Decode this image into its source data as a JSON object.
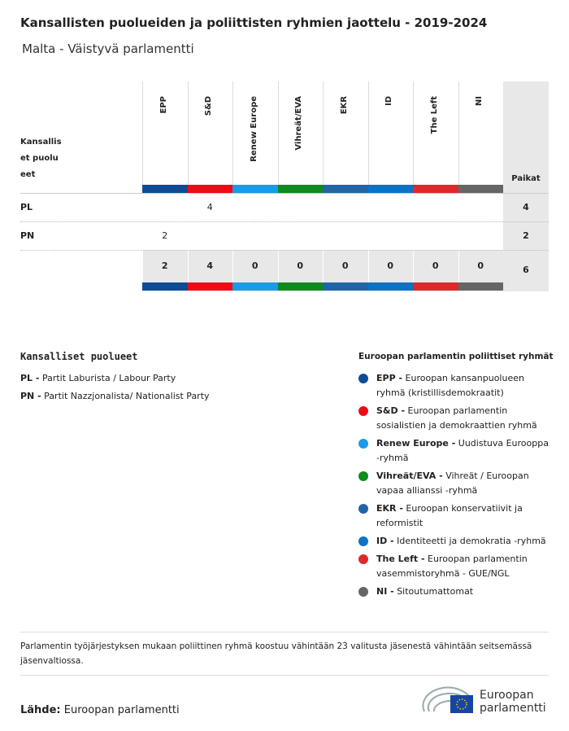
{
  "header": {
    "title": "Kansallisten puolueiden ja poliittisten ryhmien jaottelu - 2019-2024",
    "subtitle": "Malta - Väistyvä parlamentti"
  },
  "table": {
    "corner": "Kansallis et puolueet",
    "seats_label": "Paikat",
    "groups": [
      {
        "name": "EPP",
        "color": "#0d4c94"
      },
      {
        "name": "S&D",
        "color": "#ef0a17"
      },
      {
        "name": "Renew Europe",
        "color": "#1a9be6"
      },
      {
        "name": "Vihreät/EVA",
        "color": "#0f8a1f"
      },
      {
        "name": "EKR",
        "color": "#2265a6"
      },
      {
        "name": "ID",
        "color": "#0d72c4"
      },
      {
        "name": "The Left",
        "color": "#dc2a2a"
      },
      {
        "name": "NI",
        "color": "#666666"
      }
    ],
    "rows": [
      {
        "party": "PL",
        "values": [
          null,
          4,
          null,
          null,
          null,
          null,
          null,
          null
        ],
        "total": 4
      },
      {
        "party": "PN",
        "values": [
          2,
          null,
          null,
          null,
          null,
          null,
          null,
          null
        ],
        "total": 2
      }
    ],
    "totals": [
      2,
      4,
      0,
      0,
      0,
      0,
      0,
      0
    ],
    "grand_total": 6
  },
  "legend": {
    "national_title": "Kansalliset puolueet",
    "national": [
      {
        "abbr": "PL -",
        "name": "Partit Laburista / Labour Party"
      },
      {
        "abbr": "PN -",
        "name": "Partit Nazzjonalista/ Nationalist Party"
      }
    ],
    "groups_title": "Euroopan parlamentin poliittiset ryhmät",
    "groups": [
      {
        "abbr": "EPP -",
        "desc": "Euroopan kansanpuolueen ryhmä (kristillisdemokraatit)"
      },
      {
        "abbr": "S&D -",
        "desc": "Euroopan parlamentin sosialistien ja demokraattien ryhmä"
      },
      {
        "abbr": "Renew Europe -",
        "desc": "Uudistuva Eurooppa -ryhmä"
      },
      {
        "abbr": "Vihreät/EVA -",
        "desc": "Vihreät / Euroopan vapaa allianssi -ryhmä"
      },
      {
        "abbr": "EKR -",
        "desc": "Euroopan konservatiivit ja reformistit"
      },
      {
        "abbr": "ID -",
        "desc": "Identiteetti ja demokratia -ryhmä"
      },
      {
        "abbr": "The Left -",
        "desc": "Euroopan parlamentin vasemmistoryhmä - GUE/NGL"
      },
      {
        "abbr": "NI -",
        "desc": "Sitoutumattomat"
      }
    ]
  },
  "note": "Parlamentin työjärjestyksen mukaan poliittinen ryhmä koostuu vähintään 23 valitusta jäsenestä vähintään seitsemässä jäsenvaltiossa.",
  "source": {
    "label": "Lähde:",
    "text": "Euroopan parlamentti"
  },
  "logo": "Euroopan parlamentti"
}
